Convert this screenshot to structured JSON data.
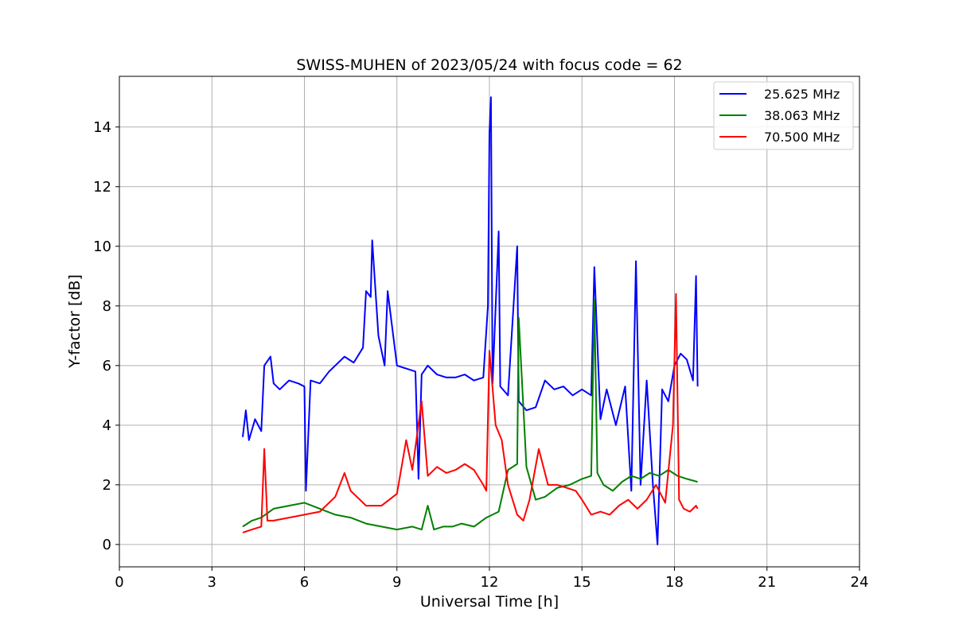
{
  "chart_data": {
    "type": "line",
    "title": "SWISS-MUHEN of 2023/05/24 with focus code = 62",
    "xlabel": "Universal Time [h]",
    "ylabel": "Y-factor [dB]",
    "xlim": [
      0,
      24
    ],
    "ylim": [
      -0.75,
      15.7
    ],
    "xticks": [
      0,
      3,
      6,
      9,
      12,
      15,
      18,
      21,
      24
    ],
    "yticks": [
      0,
      2,
      4,
      6,
      8,
      10,
      12,
      14
    ],
    "grid": true,
    "legend_position": "upper-right",
    "series": [
      {
        "name": "25.625 MHz",
        "color": "#0000ff",
        "x": [
          4.0,
          4.1,
          4.2,
          4.4,
          4.6,
          4.7,
          4.9,
          5.0,
          5.2,
          5.5,
          5.8,
          6.0,
          6.05,
          6.2,
          6.5,
          6.8,
          7.0,
          7.3,
          7.6,
          7.9,
          8.0,
          8.15,
          8.2,
          8.4,
          8.6,
          8.7,
          9.0,
          9.3,
          9.6,
          9.7,
          9.8,
          10.0,
          10.3,
          10.6,
          10.9,
          11.2,
          11.5,
          11.8,
          11.95,
          12.0,
          12.05,
          12.1,
          12.3,
          12.35,
          12.6,
          12.9,
          12.95,
          13.2,
          13.5,
          13.8,
          14.1,
          14.4,
          14.7,
          15.0,
          15.3,
          15.4,
          15.6,
          15.8,
          16.1,
          16.4,
          16.6,
          16.75,
          16.9,
          17.1,
          17.3,
          17.45,
          17.6,
          17.8,
          18.0,
          18.2,
          18.4,
          18.6,
          18.7,
          18.75
        ],
        "y": [
          3.6,
          4.5,
          3.5,
          4.2,
          3.8,
          6.0,
          6.3,
          5.4,
          5.2,
          5.5,
          5.4,
          5.3,
          1.8,
          5.5,
          5.4,
          5.8,
          6.0,
          6.3,
          6.1,
          6.6,
          8.5,
          8.3,
          10.2,
          7.0,
          6.0,
          8.5,
          6.0,
          5.9,
          5.8,
          2.2,
          5.7,
          6.0,
          5.7,
          5.6,
          5.6,
          5.7,
          5.5,
          5.6,
          8.0,
          13.8,
          15.0,
          5.4,
          10.5,
          5.3,
          5.0,
          10.0,
          4.8,
          4.5,
          4.6,
          5.5,
          5.2,
          5.3,
          5.0,
          5.2,
          5.0,
          9.3,
          4.2,
          5.2,
          4.0,
          5.3,
          1.8,
          9.5,
          2.0,
          5.5,
          2.0,
          0.0,
          5.2,
          4.8,
          6.0,
          6.4,
          6.2,
          5.5,
          9.0,
          5.3
        ]
      },
      {
        "name": "38.063 MHz",
        "color": "#008000",
        "x": [
          4.0,
          4.3,
          4.6,
          5.0,
          5.5,
          6.0,
          6.5,
          7.0,
          7.5,
          8.0,
          8.5,
          9.0,
          9.5,
          9.8,
          10.0,
          10.2,
          10.5,
          10.8,
          11.1,
          11.5,
          11.9,
          12.1,
          12.3,
          12.6,
          12.9,
          12.95,
          13.2,
          13.5,
          13.8,
          14.2,
          14.6,
          15.0,
          15.3,
          15.4,
          15.5,
          15.7,
          16.0,
          16.3,
          16.6,
          16.9,
          17.2,
          17.5,
          17.8,
          18.1,
          18.4,
          18.75
        ],
        "y": [
          0.6,
          0.8,
          0.9,
          1.2,
          1.3,
          1.4,
          1.2,
          1.0,
          0.9,
          0.7,
          0.6,
          0.5,
          0.6,
          0.5,
          1.3,
          0.5,
          0.6,
          0.6,
          0.7,
          0.6,
          0.9,
          1.0,
          1.1,
          2.5,
          2.7,
          7.6,
          2.6,
          1.5,
          1.6,
          1.9,
          2.0,
          2.2,
          2.3,
          8.2,
          2.4,
          2.0,
          1.8,
          2.1,
          2.3,
          2.2,
          2.4,
          2.3,
          2.5,
          2.3,
          2.2,
          2.1
        ]
      },
      {
        "name": "70.500 MHz",
        "color": "#ff0000",
        "x": [
          4.0,
          4.3,
          4.6,
          4.7,
          4.8,
          5.0,
          5.5,
          6.0,
          6.5,
          7.0,
          7.3,
          7.5,
          8.0,
          8.5,
          9.0,
          9.3,
          9.5,
          9.8,
          10.0,
          10.3,
          10.6,
          10.9,
          11.2,
          11.5,
          11.8,
          11.9,
          12.0,
          12.2,
          12.4,
          12.6,
          12.9,
          13.1,
          13.3,
          13.6,
          13.9,
          14.2,
          14.5,
          14.8,
          15.0,
          15.3,
          15.6,
          15.9,
          16.2,
          16.5,
          16.8,
          17.1,
          17.4,
          17.7,
          17.95,
          18.05,
          18.15,
          18.3,
          18.5,
          18.7,
          18.75
        ],
        "y": [
          0.4,
          0.5,
          0.6,
          3.2,
          0.8,
          0.8,
          0.9,
          1.0,
          1.1,
          1.6,
          2.4,
          1.8,
          1.3,
          1.3,
          1.7,
          3.5,
          2.5,
          4.8,
          2.3,
          2.6,
          2.4,
          2.5,
          2.7,
          2.5,
          2.0,
          1.8,
          6.5,
          4.0,
          3.5,
          2.0,
          1.0,
          0.8,
          1.5,
          3.2,
          2.0,
          2.0,
          1.9,
          1.8,
          1.5,
          1.0,
          1.1,
          1.0,
          1.3,
          1.5,
          1.2,
          1.5,
          2.0,
          1.4,
          4.0,
          8.4,
          1.5,
          1.2,
          1.1,
          1.3,
          1.2
        ]
      }
    ]
  }
}
